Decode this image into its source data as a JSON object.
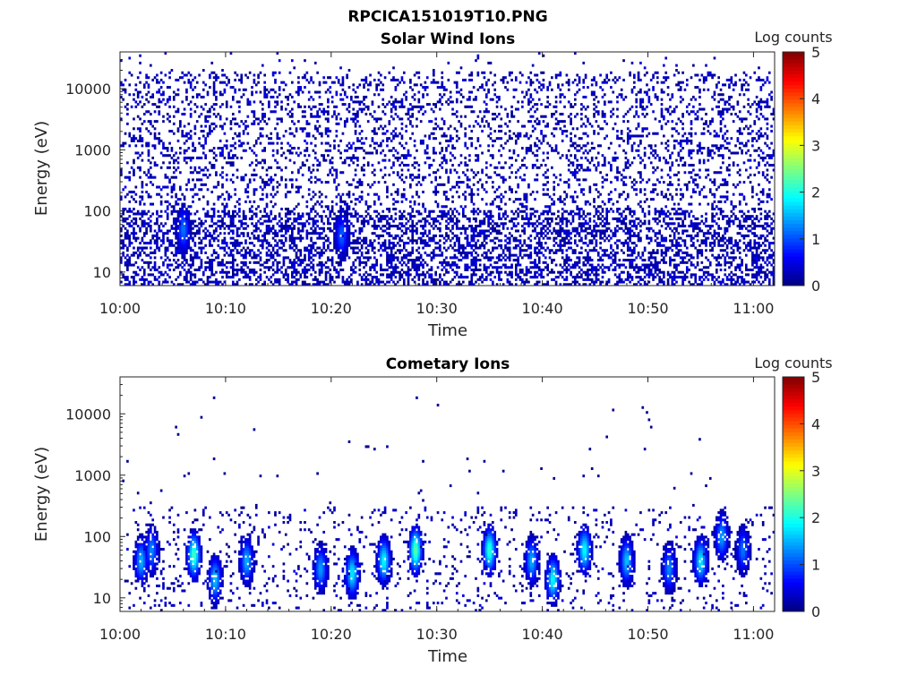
{
  "figure": {
    "title": "RPCICA151019T10.PNG"
  },
  "colormap": {
    "name": "jet",
    "stops": [
      "#00007f",
      "#0000ff",
      "#007fff",
      "#00ffff",
      "#7fff7f",
      "#ffff00",
      "#ff7f00",
      "#ff0000",
      "#7f0000"
    ]
  },
  "chart_data": [
    {
      "type": "heatmap",
      "title": "Solar Wind Ions",
      "xlabel": "Time",
      "ylabel": "Energy (eV)",
      "x_ticks": [
        "10:00",
        "10:10",
        "10:20",
        "10:30",
        "10:40",
        "10:50",
        "11:00"
      ],
      "xlim": [
        "10:00",
        "11:02"
      ],
      "y_scale": "log",
      "y_ticks": [
        "10",
        "100",
        "1000",
        "10000"
      ],
      "ylim": [
        6,
        40000
      ],
      "colorbar": {
        "label": "Log counts",
        "range": [
          0,
          5
        ],
        "ticks": [
          "0",
          "1",
          "2",
          "3",
          "4",
          "5"
        ]
      },
      "description": "sparse noise across all energies with log counts mostly 0-0.5",
      "clusters": [
        {
          "t": "10:06",
          "e": 50,
          "v": 1.2
        },
        {
          "t": "10:21",
          "e": 40,
          "v": 1.1
        }
      ]
    },
    {
      "type": "heatmap",
      "title": "Cometary Ions",
      "xlabel": "Time",
      "ylabel": "Energy (eV)",
      "x_ticks": [
        "10:00",
        "10:10",
        "10:20",
        "10:30",
        "10:40",
        "10:50",
        "11:00"
      ],
      "xlim": [
        "10:00",
        "11:02"
      ],
      "y_scale": "log",
      "y_ticks": [
        "10",
        "100",
        "1000",
        "10000"
      ],
      "ylim": [
        6,
        40000
      ],
      "colorbar": {
        "label": "Log counts",
        "range": [
          0,
          5
        ],
        "ticks": [
          "0",
          "1",
          "2",
          "3",
          "4",
          "5"
        ]
      },
      "clusters": [
        {
          "t": "10:02",
          "e": 40,
          "v": 1.5
        },
        {
          "t": "10:03",
          "e": 60,
          "v": 1.3
        },
        {
          "t": "10:07",
          "e": 50,
          "v": 2.2
        },
        {
          "t": "10:09",
          "e": 20,
          "v": 1.6
        },
        {
          "t": "10:12",
          "e": 40,
          "v": 1.5
        },
        {
          "t": "10:19",
          "e": 30,
          "v": 1.4
        },
        {
          "t": "10:22",
          "e": 25,
          "v": 1.8
        },
        {
          "t": "10:25",
          "e": 40,
          "v": 1.9
        },
        {
          "t": "10:28",
          "e": 60,
          "v": 2.3
        },
        {
          "t": "10:35",
          "e": 60,
          "v": 2.1
        },
        {
          "t": "10:39",
          "e": 40,
          "v": 1.5
        },
        {
          "t": "10:41",
          "e": 20,
          "v": 1.9
        },
        {
          "t": "10:44",
          "e": 60,
          "v": 1.9
        },
        {
          "t": "10:48",
          "e": 40,
          "v": 1.6
        },
        {
          "t": "10:52",
          "e": 30,
          "v": 1.3
        },
        {
          "t": "10:55",
          "e": 40,
          "v": 1.8
        },
        {
          "t": "10:57",
          "e": 100,
          "v": 1.4
        },
        {
          "t": "10:59",
          "e": 60,
          "v": 1.2
        }
      ]
    }
  ]
}
